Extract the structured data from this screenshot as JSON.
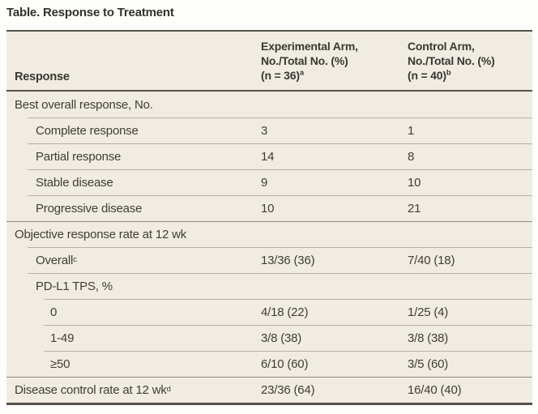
{
  "title": "Table. Response to Treatment",
  "table": {
    "header": {
      "response_col": "Response",
      "experimental_col": {
        "line1": "Experimental Arm,",
        "line2": "No./Total No. (%)",
        "line3": "(n = 36)",
        "sup": "a"
      },
      "control_col": {
        "line1": "Control Arm,",
        "line2": "No./Total No. (%)",
        "line3": "(n = 40)",
        "sup": "b"
      }
    },
    "rows": [
      {
        "label": "Best overall response, No.",
        "indent": 0,
        "experimental": "",
        "control": ""
      },
      {
        "label": "Complete response",
        "indent": 1,
        "experimental": "3",
        "control": "1"
      },
      {
        "label": "Partial response",
        "indent": 1,
        "experimental": "14",
        "control": "8"
      },
      {
        "label": "Stable disease",
        "indent": 1,
        "experimental": "9",
        "control": "10"
      },
      {
        "label": "Progressive disease",
        "indent": 1,
        "experimental": "10",
        "control": "21"
      },
      {
        "label": "Objective response rate at 12 wk",
        "indent": 0,
        "experimental": "",
        "control": ""
      },
      {
        "label": "Overall",
        "sup": "c",
        "indent": 1,
        "experimental": "13/36 (36)",
        "control": "7/40 (18)"
      },
      {
        "label": "PD-L1 TPS, %",
        "indent": 1,
        "experimental": "",
        "control": ""
      },
      {
        "label": "0",
        "indent": 2,
        "experimental": "4/18 (22)",
        "control": "1/25 (4)"
      },
      {
        "label": "1-49",
        "indent": 2,
        "experimental": "3/8 (38)",
        "control": "3/8 (38)"
      },
      {
        "label": "≥50",
        "indent": 2,
        "experimental": "6/10 (60)",
        "control": "3/5 (60)"
      },
      {
        "label": "Disease control rate at 12 wk",
        "sup": "d",
        "indent": 0,
        "experimental": "23/36 (64)",
        "control": "16/40 (40)"
      }
    ],
    "colors": {
      "table_background": "#f0ece1",
      "heavy_rule": "#56534b",
      "section_rule": "#8e8b81",
      "row_rule": "#b5b2a7",
      "text": "#3d3b35"
    }
  }
}
